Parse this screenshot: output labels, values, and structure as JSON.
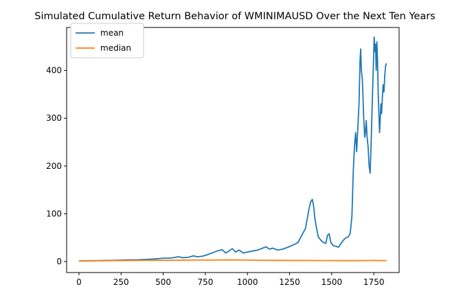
{
  "chart_data": {
    "type": "line",
    "title": "Simulated Cumulative Return Behavior of WMINIMAUSD Over the Next Ten Years",
    "xlabel": "",
    "ylabel": "",
    "xlim": [
      -73,
      1900
    ],
    "ylim": [
      -23,
      490
    ],
    "xticks": [
      0,
      250,
      500,
      750,
      1000,
      1250,
      1500,
      1750
    ],
    "yticks": [
      0,
      100,
      200,
      300,
      400
    ],
    "grid": false,
    "legend_position": "top-left",
    "series": [
      {
        "name": "mean",
        "color": "#1f77b4",
        "points": [
          [
            0,
            1.2
          ],
          [
            50,
            1.5
          ],
          [
            100,
            2
          ],
          [
            150,
            2.3
          ],
          [
            200,
            2.5
          ],
          [
            250,
            3
          ],
          [
            300,
            3.5
          ],
          [
            350,
            3.8
          ],
          [
            400,
            4.5
          ],
          [
            450,
            5.5
          ],
          [
            500,
            7
          ],
          [
            550,
            7.5
          ],
          [
            590,
            10
          ],
          [
            620,
            8
          ],
          [
            650,
            9
          ],
          [
            680,
            12
          ],
          [
            700,
            10
          ],
          [
            730,
            11
          ],
          [
            760,
            14
          ],
          [
            790,
            18
          ],
          [
            820,
            22
          ],
          [
            850,
            25
          ],
          [
            870,
            18
          ],
          [
            890,
            22
          ],
          [
            910,
            27
          ],
          [
            930,
            20
          ],
          [
            950,
            24
          ],
          [
            975,
            18
          ],
          [
            1000,
            20
          ],
          [
            1030,
            22
          ],
          [
            1060,
            24
          ],
          [
            1090,
            28
          ],
          [
            1110,
            31
          ],
          [
            1130,
            26
          ],
          [
            1150,
            28
          ],
          [
            1180,
            24
          ],
          [
            1210,
            26
          ],
          [
            1240,
            30
          ],
          [
            1260,
            33
          ],
          [
            1280,
            36
          ],
          [
            1300,
            40
          ],
          [
            1315,
            50
          ],
          [
            1330,
            60
          ],
          [
            1345,
            70
          ],
          [
            1355,
            90
          ],
          [
            1365,
            110
          ],
          [
            1375,
            125
          ],
          [
            1385,
            130
          ],
          [
            1393,
            115
          ],
          [
            1400,
            90
          ],
          [
            1410,
            70
          ],
          [
            1420,
            52
          ],
          [
            1435,
            45
          ],
          [
            1450,
            40
          ],
          [
            1465,
            38
          ],
          [
            1475,
            55
          ],
          [
            1485,
            58
          ],
          [
            1495,
            40
          ],
          [
            1510,
            33
          ],
          [
            1525,
            32
          ],
          [
            1540,
            30
          ],
          [
            1555,
            38
          ],
          [
            1570,
            45
          ],
          [
            1585,
            50
          ],
          [
            1600,
            52
          ],
          [
            1610,
            60
          ],
          [
            1620,
            95
          ],
          [
            1628,
            190
          ],
          [
            1635,
            240
          ],
          [
            1642,
            270
          ],
          [
            1648,
            230
          ],
          [
            1655,
            280
          ],
          [
            1662,
            330
          ],
          [
            1668,
            420
          ],
          [
            1672,
            445
          ],
          [
            1676,
            400
          ],
          [
            1682,
            380
          ],
          [
            1690,
            300
          ],
          [
            1696,
            260
          ],
          [
            1700,
            270
          ],
          [
            1705,
            295
          ],
          [
            1710,
            260
          ],
          [
            1716,
            240
          ],
          [
            1722,
            200
          ],
          [
            1728,
            185
          ],
          [
            1735,
            260
          ],
          [
            1742,
            350
          ],
          [
            1748,
            420
          ],
          [
            1752,
            470
          ],
          [
            1756,
            440
          ],
          [
            1760,
            455
          ],
          [
            1764,
            400
          ],
          [
            1768,
            460
          ],
          [
            1772,
            420
          ],
          [
            1776,
            350
          ],
          [
            1780,
            310
          ],
          [
            1784,
            270
          ],
          [
            1788,
            300
          ],
          [
            1792,
            330
          ],
          [
            1796,
            310
          ],
          [
            1800,
            340
          ],
          [
            1805,
            370
          ],
          [
            1810,
            355
          ],
          [
            1815,
            390
          ],
          [
            1820,
            410
          ],
          [
            1825,
            415
          ]
        ]
      },
      {
        "name": "median",
        "color": "#ff7f0e",
        "points": [
          [
            0,
            1.0
          ],
          [
            100,
            1.5
          ],
          [
            200,
            2.0
          ],
          [
            300,
            2.2
          ],
          [
            400,
            2.5
          ],
          [
            500,
            2.6
          ],
          [
            600,
            2.8
          ],
          [
            700,
            3.2
          ],
          [
            800,
            3.0
          ],
          [
            900,
            3.5
          ],
          [
            1000,
            3.0
          ],
          [
            1100,
            2.6
          ],
          [
            1200,
            2.4
          ],
          [
            1300,
            2.2
          ],
          [
            1400,
            2.1
          ],
          [
            1500,
            2.0
          ],
          [
            1600,
            1.9
          ],
          [
            1700,
            2.0
          ],
          [
            1750,
            2.2
          ],
          [
            1825,
            2.0
          ]
        ]
      }
    ]
  }
}
